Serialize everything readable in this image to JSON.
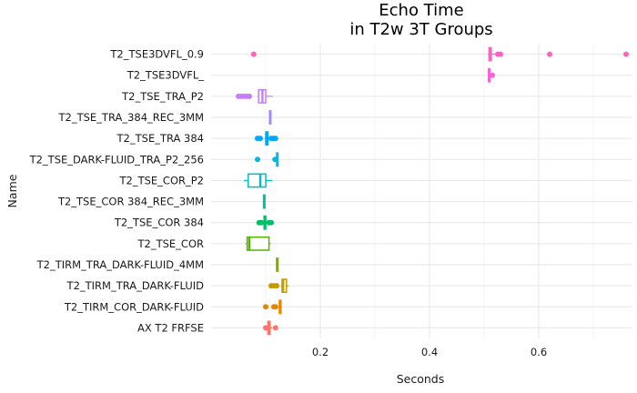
{
  "chart_data": {
    "type": "boxplot",
    "title_lines": [
      "Echo Time",
      "in T2w 3T Groups"
    ],
    "xlabel": "Seconds",
    "ylabel": "Name",
    "xlim": [
      0.0,
      0.77
    ],
    "x_ticks": [
      0.2,
      0.4,
      0.6
    ],
    "x_tick_labels": [
      "0.2",
      "0.4",
      "0.6"
    ],
    "grid": true,
    "categories": [
      "T2_TSE3DVFL_0.9",
      "T2_TSE3DVFL_",
      "T2_TSE_TRA_P2",
      "T2_TSE_TRA_384_REC_3MM",
      "T2_TSE_TRA 384",
      "T2_TSE_DARK-FLUID_TRA_P2_256",
      "T2_TSE_COR_P2",
      "T2_TSE_COR 384_REC_3MM",
      "T2_TSE_COR 384",
      "T2_TSE_COR",
      "T2_TIRM_TRA_DARK-FLUID_4MM",
      "T2_TIRM_TRA_DARK-FLUID",
      "T2_TIRM_COR_DARK-FLUID",
      "AX T2 FRFSE"
    ],
    "colors": [
      "#ff61c3",
      "#fb61d7",
      "#c77cff",
      "#a58aff",
      "#00a9ff",
      "#00b8e7",
      "#00bfc4",
      "#00c19a",
      "#00be67",
      "#53b400",
      "#7cae00",
      "#c49a00",
      "#e58700",
      "#f8766d"
    ],
    "boxes": [
      {
        "q1": 0.509,
        "median": 0.511,
        "q3": 0.513,
        "whisker_low": 0.507,
        "whisker_high": 0.52,
        "outliers": [
          0.078,
          0.525,
          0.53,
          0.62,
          0.76
        ]
      },
      {
        "q1": 0.508,
        "median": 0.509,
        "q3": 0.51,
        "whisker_low": 0.507,
        "whisker_high": 0.511,
        "outliers": [
          0.515
        ]
      },
      {
        "q1": 0.087,
        "median": 0.094,
        "q3": 0.1,
        "whisker_low": 0.085,
        "whisker_high": 0.113,
        "outliers": [
          0.05,
          0.055,
          0.06,
          0.065,
          0.07
        ]
      },
      {
        "q1": 0.107,
        "median": 0.108,
        "q3": 0.109,
        "whisker_low": 0.106,
        "whisker_high": 0.11,
        "outliers": []
      },
      {
        "q1": 0.1,
        "median": 0.102,
        "q3": 0.104,
        "whisker_low": 0.098,
        "whisker_high": 0.106,
        "outliers": [
          0.085,
          0.09,
          0.11,
          0.114,
          0.118
        ]
      },
      {
        "q1": 0.12,
        "median": 0.121,
        "q3": 0.122,
        "whisker_low": 0.119,
        "whisker_high": 0.123,
        "outliers": [
          0.085,
          0.117
        ]
      },
      {
        "q1": 0.068,
        "median": 0.09,
        "q3": 0.1,
        "whisker_low": 0.06,
        "whisker_high": 0.112,
        "outliers": []
      },
      {
        "q1": 0.096,
        "median": 0.097,
        "q3": 0.098,
        "whisker_low": 0.095,
        "whisker_high": 0.099,
        "outliers": []
      },
      {
        "q1": 0.097,
        "median": 0.099,
        "q3": 0.1,
        "whisker_low": 0.095,
        "whisker_high": 0.102,
        "outliers": [
          0.088,
          0.092,
          0.106,
          0.11
        ]
      },
      {
        "q1": 0.066,
        "median": 0.07,
        "q3": 0.106,
        "whisker_low": 0.063,
        "whisker_high": 0.109,
        "outliers": []
      },
      {
        "q1": 0.12,
        "median": 0.121,
        "q3": 0.122,
        "whisker_low": 0.119,
        "whisker_high": 0.123,
        "outliers": []
      },
      {
        "q1": 0.13,
        "median": 0.132,
        "q3": 0.138,
        "whisker_low": 0.128,
        "whisker_high": 0.142,
        "outliers": [
          0.11,
          0.115,
          0.12
        ]
      },
      {
        "q1": 0.125,
        "median": 0.126,
        "q3": 0.128,
        "whisker_low": 0.123,
        "whisker_high": 0.13,
        "outliers": [
          0.1,
          0.115,
          0.118
        ]
      },
      {
        "q1": 0.104,
        "median": 0.106,
        "q3": 0.108,
        "whisker_low": 0.098,
        "whisker_high": 0.112,
        "outliers": [
          0.1,
          0.118
        ]
      }
    ]
  }
}
